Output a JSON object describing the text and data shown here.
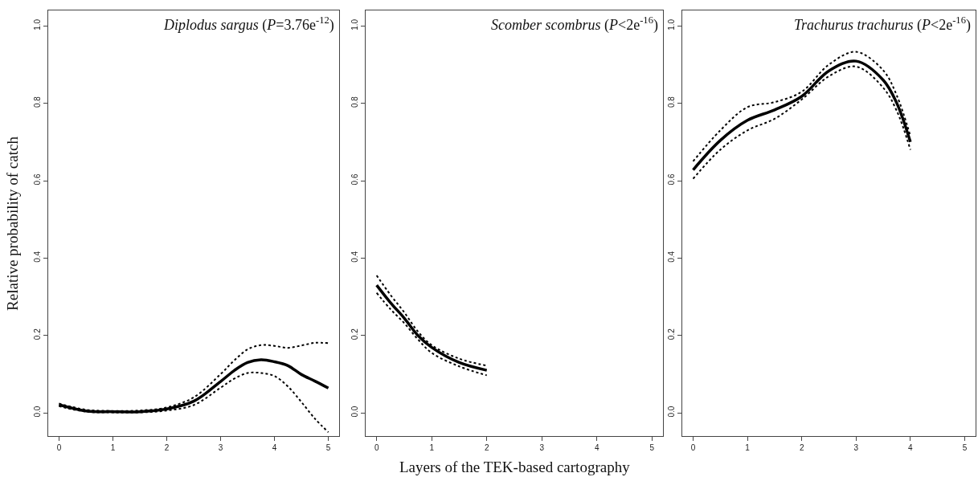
{
  "chart_data": [
    {
      "type": "line",
      "title": "Diplodus sargus (P=3.76e$^{-12}$)",
      "ylabel": "Relative probability of catch",
      "x": [
        0,
        0.5,
        1,
        1.5,
        2,
        2.5,
        3,
        3.25,
        3.5,
        3.75,
        4,
        4.25,
        4.5,
        4.75,
        5
      ],
      "series": [
        {
          "color": "#000000",
          "line_style": "solid",
          "values": [
            0.021,
            0.005,
            0.003,
            0.003,
            0.01,
            0.03,
            0.081,
            0.109,
            0.13,
            0.137,
            0.132,
            0.122,
            0.099,
            0.082,
            0.064
          ]
        },
        {
          "color": "#000000",
          "line_style": "dotted",
          "values": [
            0.017,
            0.003,
            0.001,
            0.001,
            0.006,
            0.02,
            0.065,
            0.088,
            0.103,
            0.103,
            0.095,
            0.068,
            0.028,
            -0.015,
            -0.05
          ]
        },
        {
          "color": "#000000",
          "line_style": "dotted",
          "values": [
            0.024,
            0.008,
            0.005,
            0.006,
            0.014,
            0.04,
            0.1,
            0.135,
            0.164,
            0.175,
            0.173,
            0.168,
            0.174,
            0.181,
            0.18
          ]
        }
      ],
      "xlim": [
        -0.2,
        5.2
      ],
      "ylim": [
        -0.06,
        1.04
      ],
      "xticks": [
        0,
        1,
        2,
        3,
        4,
        5
      ],
      "yticks": [
        {
          "value": 0,
          "label": "0.0"
        },
        {
          "value": 0.2,
          "label": "0.2"
        },
        {
          "value": 0.4,
          "label": "0.4"
        },
        {
          "value": 0.6,
          "label": "0.6"
        },
        {
          "value": 0.8,
          "label": "0.8"
        },
        {
          "value": 1,
          "label": "1.0"
        }
      ]
    },
    {
      "type": "line",
      "title": "Scomber scombrus (P<2e$^{-16}$)",
      "xlabel": "Layers of the TEK-based cartography",
      "x": [
        0,
        0.25,
        0.5,
        0.75,
        1,
        1.5,
        2
      ],
      "series": [
        {
          "color": "#000000",
          "line_style": "solid",
          "values": [
            0.33,
            0.285,
            0.245,
            0.2,
            0.169,
            0.13,
            0.11
          ]
        },
        {
          "color": "#000000",
          "line_style": "dotted",
          "values": [
            0.31,
            0.268,
            0.232,
            0.19,
            0.155,
            0.12,
            0.097
          ]
        },
        {
          "color": "#000000",
          "line_style": "dotted",
          "values": [
            0.355,
            0.305,
            0.26,
            0.21,
            0.175,
            0.14,
            0.122
          ]
        }
      ],
      "xlim": [
        -0.2,
        5.2
      ],
      "ylim": [
        -0.06,
        1.04
      ],
      "xticks": [
        0,
        1,
        2,
        3,
        4,
        5
      ],
      "yticks": [
        {
          "value": 0,
          "label": "0.0"
        },
        {
          "value": 0.2,
          "label": "0.2"
        },
        {
          "value": 0.4,
          "label": "0.4"
        },
        {
          "value": 0.6,
          "label": "0.6"
        },
        {
          "value": 0.8,
          "label": "0.8"
        },
        {
          "value": 1,
          "label": "1.0"
        }
      ]
    },
    {
      "type": "line",
      "title": "Trachurus trachurus (P<2e$^{-16}$)",
      "x": [
        0,
        0.5,
        1,
        1.5,
        2,
        2.5,
        3,
        3.5,
        3.75,
        4
      ],
      "series": [
        {
          "color": "#000000",
          "line_style": "solid",
          "values": [
            0.628,
            0.704,
            0.756,
            0.783,
            0.818,
            0.884,
            0.909,
            0.86,
            0.8,
            0.7
          ]
        },
        {
          "color": "#000000",
          "line_style": "dotted",
          "values": [
            0.605,
            0.68,
            0.73,
            0.76,
            0.81,
            0.87,
            0.895,
            0.84,
            0.78,
            0.68
          ]
        },
        {
          "color": "#000000",
          "line_style": "dotted",
          "values": [
            0.65,
            0.73,
            0.79,
            0.803,
            0.83,
            0.9,
            0.933,
            0.885,
            0.82,
            0.715
          ]
        }
      ],
      "xlim": [
        -0.2,
        5.2
      ],
      "ylim": [
        -0.06,
        1.04
      ],
      "xticks": [
        0,
        1,
        2,
        3,
        4,
        5
      ],
      "yticks": [
        {
          "value": 0,
          "label": "0.0"
        },
        {
          "value": 0.2,
          "label": "0.2"
        },
        {
          "value": 0.4,
          "label": "0.4"
        },
        {
          "value": 0.6,
          "label": "0.6"
        },
        {
          "value": 0.8,
          "label": "0.8"
        },
        {
          "value": 1,
          "label": "1.0"
        }
      ]
    }
  ]
}
